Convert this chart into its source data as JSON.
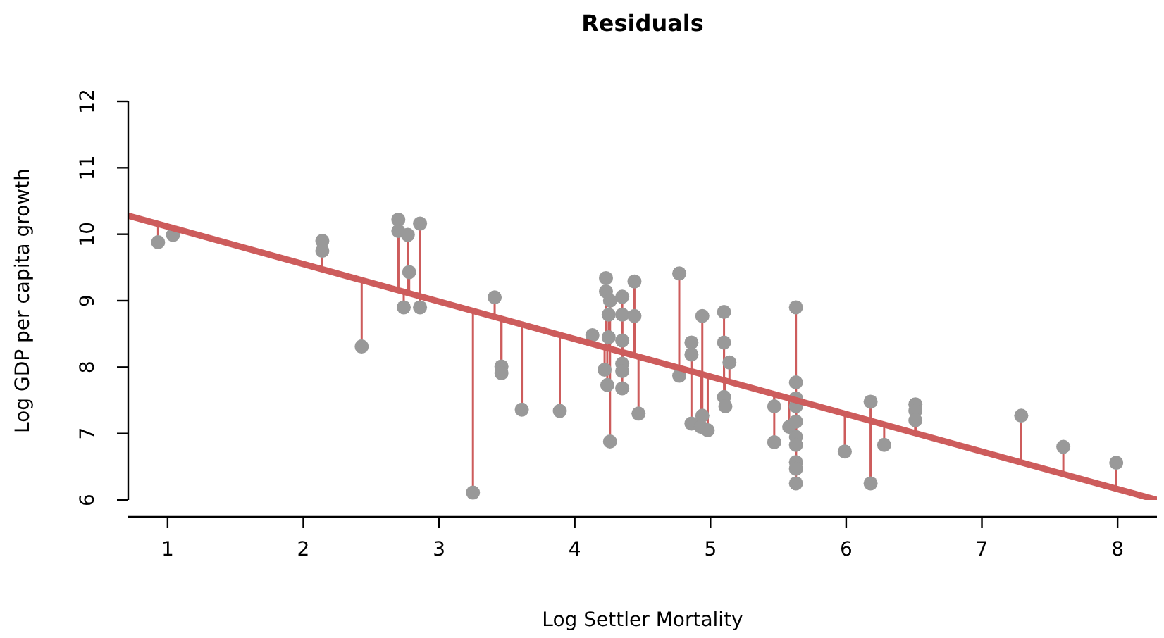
{
  "chart_data": {
    "type": "scatter",
    "title": "Residuals",
    "xlabel": "Log Settler Mortality",
    "ylabel": "Log GDP per capita growth",
    "xlim": [
      0.71,
      8.29
    ],
    "ylim": [
      6,
      12
    ],
    "xticks": [
      1,
      2,
      3,
      4,
      5,
      6,
      7,
      8
    ],
    "yticks": [
      6,
      7,
      8,
      9,
      10,
      11,
      12
    ],
    "grid": false,
    "legend": false,
    "series": [
      {
        "color": "#999999",
        "marker": "circle",
        "x": [
          0.93,
          1.04,
          2.14,
          2.14,
          2.43,
          2.7,
          2.7,
          2.77,
          2.78,
          2.74,
          2.86,
          2.86,
          3.25,
          3.41,
          3.46,
          3.46,
          3.61,
          3.89,
          4.13,
          4.23,
          4.23,
          4.26,
          4.25,
          4.25,
          4.22,
          4.24,
          4.26,
          4.35,
          4.35,
          4.35,
          4.35,
          4.35,
          4.35,
          4.44,
          4.44,
          4.47,
          4.77,
          4.77,
          4.86,
          4.86,
          4.86,
          4.94,
          4.94,
          4.93,
          4.98,
          5.1,
          5.1,
          5.14,
          5.1,
          5.11,
          5.47,
          5.47,
          5.63,
          5.63,
          5.63,
          5.63,
          5.58,
          5.63,
          5.63,
          5.63,
          5.63,
          5.63,
          5.63,
          5.99,
          6.18,
          6.18,
          6.28,
          6.51,
          6.51,
          6.51,
          7.29,
          7.6,
          7.99
        ],
        "values": [
          9.88,
          9.99,
          9.9,
          9.75,
          8.31,
          10.22,
          10.05,
          9.99,
          9.43,
          8.9,
          10.16,
          8.9,
          6.11,
          9.05,
          8.01,
          7.91,
          7.36,
          7.34,
          8.48,
          9.34,
          9.14,
          9.0,
          8.79,
          8.45,
          7.96,
          7.73,
          6.88,
          9.06,
          8.79,
          8.4,
          8.05,
          7.94,
          7.68,
          9.29,
          8.77,
          7.3,
          9.41,
          7.87,
          8.37,
          8.19,
          7.15,
          8.77,
          7.27,
          7.1,
          7.05,
          8.83,
          8.37,
          8.07,
          7.55,
          7.41,
          7.41,
          6.87,
          8.9,
          7.77,
          7.53,
          7.41,
          7.1,
          7.18,
          6.95,
          6.83,
          6.57,
          6.47,
          6.25,
          6.73,
          7.48,
          6.25,
          6.83,
          7.44,
          7.34,
          7.2,
          7.27,
          6.8,
          6.56
        ],
        "errors": [
          [
            9.88,
            10.15
          ],
          [
            9.99,
            10.09
          ],
          [
            9.47,
            9.9
          ],
          [
            9.47,
            9.75
          ],
          [
            8.31,
            9.31
          ],
          [
            9.15,
            10.22
          ],
          [
            9.15,
            10.05
          ],
          [
            9.11,
            9.99
          ],
          [
            9.11,
            9.43
          ],
          [
            8.9,
            9.13
          ],
          [
            9.06,
            10.16
          ],
          [
            8.9,
            9.06
          ],
          [
            6.11,
            8.84
          ],
          [
            8.75,
            9.05
          ],
          [
            8.01,
            8.73
          ],
          [
            7.91,
            8.73
          ],
          [
            7.36,
            8.64
          ],
          [
            7.34,
            8.48
          ],
          [
            8.35,
            8.48
          ],
          [
            8.29,
            9.34
          ],
          [
            8.29,
            9.14
          ],
          [
            8.27,
            9.0
          ],
          [
            8.28,
            8.79
          ],
          [
            8.28,
            8.45
          ],
          [
            7.96,
            8.3
          ],
          [
            7.73,
            8.28
          ],
          [
            6.88,
            8.27
          ],
          [
            8.22,
            9.06
          ],
          [
            8.22,
            8.79
          ],
          [
            8.22,
            8.4
          ],
          [
            8.05,
            8.22
          ],
          [
            7.94,
            8.22
          ],
          [
            7.68,
            8.22
          ],
          [
            8.17,
            9.29
          ],
          [
            8.17,
            8.77
          ],
          [
            7.3,
            8.15
          ],
          [
            7.98,
            9.41
          ],
          [
            7.87,
            7.98
          ],
          [
            7.93,
            8.37
          ],
          [
            7.93,
            8.19
          ],
          [
            7.15,
            7.93
          ],
          [
            7.89,
            8.77
          ],
          [
            7.27,
            7.89
          ],
          [
            7.1,
            7.89
          ],
          [
            7.05,
            7.87
          ],
          [
            7.8,
            8.83
          ],
          [
            7.8,
            8.37
          ],
          [
            7.78,
            8.07
          ],
          [
            7.55,
            7.8
          ],
          [
            7.41,
            7.79
          ],
          [
            7.41,
            7.59
          ],
          [
            6.87,
            7.59
          ],
          [
            7.5,
            8.9
          ],
          [
            7.5,
            7.77
          ],
          null,
          null,
          [
            7.1,
            7.53
          ],
          [
            7.18,
            7.5
          ],
          [
            6.95,
            7.5
          ],
          [
            6.83,
            7.5
          ],
          [
            6.57,
            7.5
          ],
          [
            6.47,
            7.5
          ],
          [
            6.25,
            7.5
          ],
          [
            6.73,
            7.3
          ],
          [
            7.19,
            7.48
          ],
          [
            6.25,
            7.19
          ],
          [
            6.83,
            7.13
          ],
          [
            7.0,
            7.44
          ],
          [
            7.0,
            7.34
          ],
          [
            7.0,
            7.2
          ],
          [
            6.56,
            7.27
          ],
          [
            6.39,
            6.8
          ],
          [
            6.17,
            6.56
          ]
        ]
      },
      {
        "type": "line",
        "color": "#cd5c5c",
        "x": [
          0.71,
          8.29
        ],
        "values": [
          10.28,
          6.0
        ]
      }
    ]
  }
}
